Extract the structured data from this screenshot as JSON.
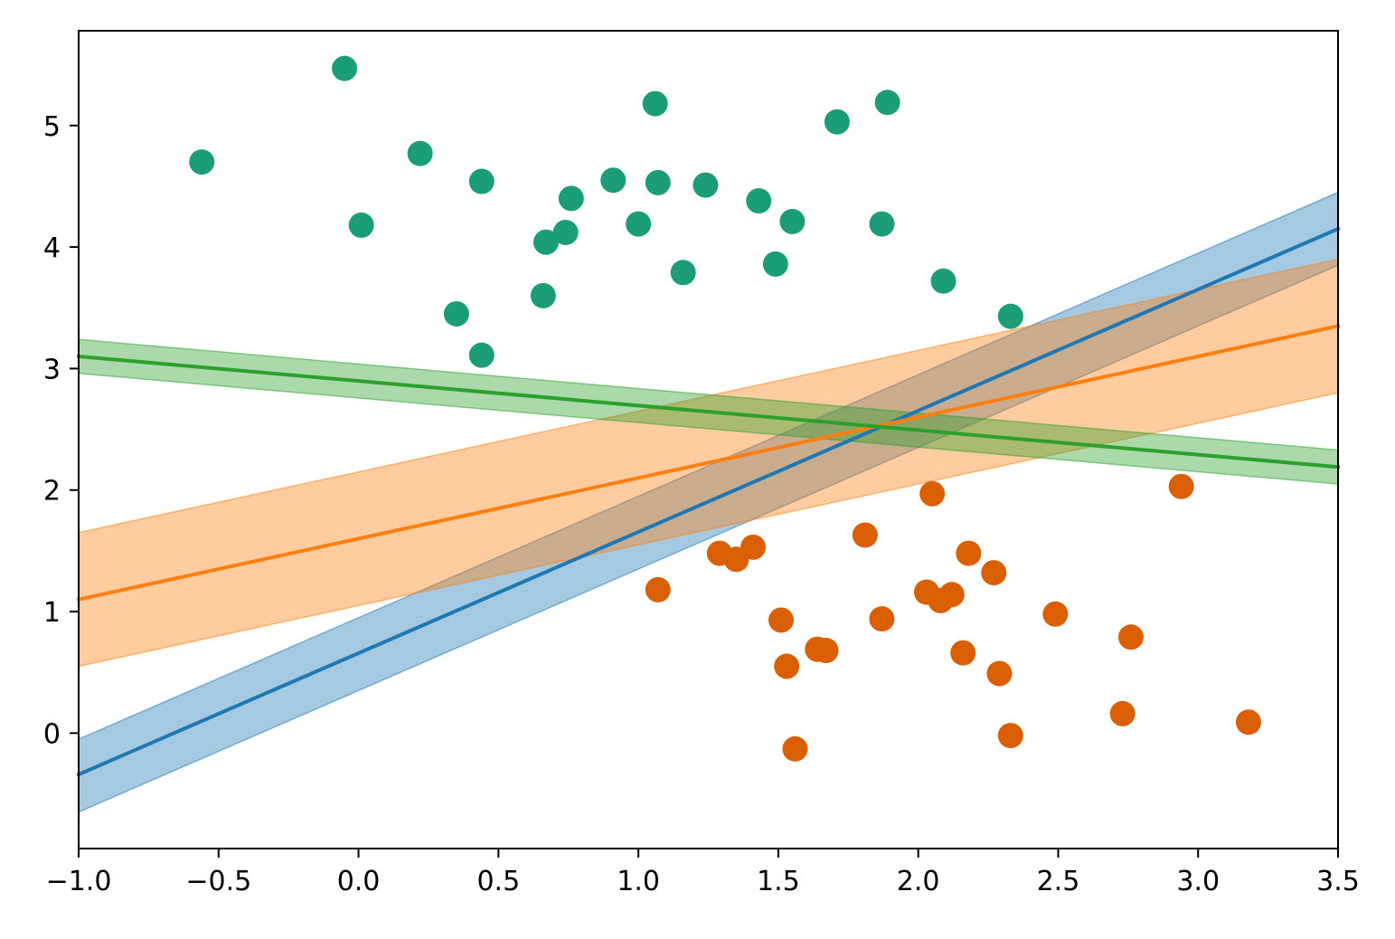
{
  "chart_data": {
    "type": "scatter",
    "title": "",
    "xlabel": "",
    "ylabel": "",
    "xlim": [
      -1.0,
      3.5
    ],
    "ylim": [
      -0.95,
      5.78
    ],
    "grid": false,
    "xticks": [
      {
        "value": -1.0,
        "label": "−1.0"
      },
      {
        "value": -0.5,
        "label": "−0.5"
      },
      {
        "value": 0.0,
        "label": "0.0"
      },
      {
        "value": 0.5,
        "label": "0.5"
      },
      {
        "value": 1.0,
        "label": "1.0"
      },
      {
        "value": 1.5,
        "label": "1.5"
      },
      {
        "value": 2.0,
        "label": "2.0"
      },
      {
        "value": 2.5,
        "label": "2.5"
      },
      {
        "value": 3.0,
        "label": "3.0"
      },
      {
        "value": 3.5,
        "label": "3.5"
      }
    ],
    "yticks": [
      {
        "value": 0,
        "label": "0"
      },
      {
        "value": 1,
        "label": "1"
      },
      {
        "value": 2,
        "label": "2"
      },
      {
        "value": 3,
        "label": "3"
      },
      {
        "value": 4,
        "label": "4"
      },
      {
        "value": 5,
        "label": "5"
      }
    ],
    "scatter_series": [
      {
        "name": "cluster-teal",
        "color": "#1b9e77",
        "points": [
          [
            -0.56,
            4.7
          ],
          [
            -0.05,
            5.47
          ],
          [
            0.01,
            4.18
          ],
          [
            0.22,
            4.77
          ],
          [
            0.35,
            3.45
          ],
          [
            0.44,
            4.54
          ],
          [
            0.44,
            3.11
          ],
          [
            0.66,
            3.6
          ],
          [
            0.67,
            4.04
          ],
          [
            0.74,
            4.12
          ],
          [
            0.76,
            4.4
          ],
          [
            0.91,
            4.55
          ],
          [
            1.0,
            4.19
          ],
          [
            1.06,
            5.18
          ],
          [
            1.07,
            4.53
          ],
          [
            1.16,
            3.79
          ],
          [
            1.24,
            4.51
          ],
          [
            1.43,
            4.38
          ],
          [
            1.49,
            3.86
          ],
          [
            1.55,
            4.21
          ],
          [
            1.71,
            5.03
          ],
          [
            1.87,
            4.19
          ],
          [
            1.89,
            5.19
          ],
          [
            2.09,
            3.72
          ],
          [
            2.33,
            3.43
          ]
        ]
      },
      {
        "name": "cluster-orange",
        "color": "#d95f02",
        "points": [
          [
            1.07,
            1.18
          ],
          [
            1.29,
            1.48
          ],
          [
            1.35,
            1.43
          ],
          [
            1.41,
            1.53
          ],
          [
            1.51,
            0.93
          ],
          [
            1.53,
            0.55
          ],
          [
            1.56,
            -0.13
          ],
          [
            1.64,
            0.69
          ],
          [
            1.67,
            0.68
          ],
          [
            1.81,
            1.63
          ],
          [
            1.87,
            0.94
          ],
          [
            2.03,
            1.16
          ],
          [
            2.05,
            1.97
          ],
          [
            2.08,
            1.09
          ],
          [
            2.12,
            1.14
          ],
          [
            2.16,
            0.66
          ],
          [
            2.18,
            1.48
          ],
          [
            2.27,
            1.32
          ],
          [
            2.29,
            0.49
          ],
          [
            2.33,
            -0.02
          ],
          [
            2.49,
            0.98
          ],
          [
            2.73,
            0.16
          ],
          [
            2.76,
            0.79
          ],
          [
            2.94,
            2.03
          ],
          [
            3.18,
            0.09
          ]
        ]
      }
    ],
    "fit_lines": [
      {
        "name": "blue-line",
        "color": "#1f77b4",
        "x": [
          -1.0,
          3.5
        ],
        "y": [
          -0.34,
          4.15
        ],
        "band_lower": [
          -0.65,
          3.85
        ],
        "band_upper": [
          -0.05,
          4.45
        ]
      },
      {
        "name": "orange-line",
        "color": "#ff7f0e",
        "x": [
          -1.0,
          3.5
        ],
        "y": [
          1.1,
          3.35
        ],
        "band_lower": [
          0.55,
          2.8
        ],
        "band_upper": [
          1.65,
          3.9
        ]
      },
      {
        "name": "green-line",
        "color": "#2ca02c",
        "x": [
          -1.0,
          3.5
        ],
        "y": [
          3.1,
          2.19
        ],
        "band_lower": [
          2.96,
          2.05
        ],
        "band_upper": [
          3.24,
          2.33
        ]
      }
    ]
  }
}
